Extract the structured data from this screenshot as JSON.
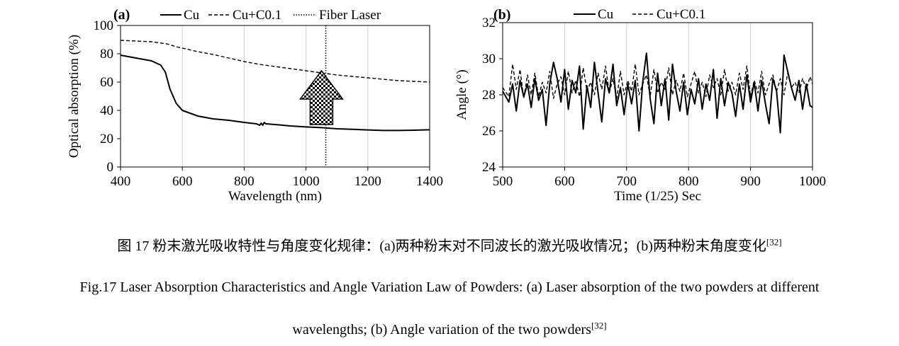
{
  "chart_data": [
    {
      "panel": "(a)",
      "type": "line",
      "xlabel": "Wavelength (nm)",
      "ylabel": "Optical absorption (%)",
      "xlim": [
        400,
        1400
      ],
      "ylim": [
        0,
        100
      ],
      "xticks": [
        400,
        600,
        800,
        1000,
        1200,
        1400
      ],
      "yticks": [
        0,
        20,
        40,
        60,
        80,
        100
      ],
      "grid": "vertical",
      "legend": "top",
      "series": [
        {
          "name": "Cu",
          "style": "solid",
          "x": [
            400,
            450,
            500,
            530,
            545,
            560,
            580,
            600,
            650,
            700,
            750,
            800,
            840,
            850,
            855,
            860,
            865,
            870,
            900,
            950,
            1000,
            1050,
            1100,
            1150,
            1200,
            1250,
            1300,
            1350,
            1400
          ],
          "y": [
            79,
            77,
            75,
            72,
            67,
            55,
            45,
            40,
            36,
            34,
            33,
            31.5,
            30.5,
            29.5,
            31,
            29.5,
            31.5,
            30.5,
            30,
            29,
            28.3,
            27.8,
            27,
            26.6,
            26.2,
            25.8,
            25.8,
            26,
            26.3
          ]
        },
        {
          "name": "Cu+C0.1",
          "style": "dashed",
          "x": [
            400,
            450,
            500,
            550,
            580,
            600,
            650,
            700,
            750,
            800,
            850,
            900,
            950,
            1000,
            1050,
            1100,
            1150,
            1200,
            1250,
            1300,
            1350,
            1400
          ],
          "y": [
            89.5,
            89,
            88.5,
            87,
            85,
            84,
            81.5,
            79.5,
            77,
            74.5,
            72.5,
            71,
            69.5,
            68,
            66.5,
            65,
            64,
            63,
            62,
            61,
            60.5,
            60
          ]
        },
        {
          "name": "Fiber Laser",
          "style": "dotted",
          "x_value": 1064
        }
      ],
      "annotation": "upward arrow indicating absorption increase at 1064 nm"
    },
    {
      "panel": "(b)",
      "type": "line",
      "xlabel": "Time (1/25) Sec",
      "ylabel": "Angle (°)",
      "xlim": [
        500,
        1000
      ],
      "ylim": [
        24,
        32
      ],
      "xticks": [
        500,
        600,
        700,
        800,
        900,
        1000
      ],
      "yticks": [
        24,
        26,
        28,
        30,
        32
      ],
      "grid": "vertical",
      "legend": "top",
      "series": [
        {
          "name": "Cu",
          "style": "solid",
          "x": [
            500,
            510,
            516,
            522,
            528,
            534,
            540,
            546,
            552,
            558,
            564,
            570,
            576,
            582,
            588,
            594,
            600,
            606,
            612,
            618,
            624,
            630,
            636,
            642,
            648,
            654,
            660,
            666,
            672,
            678,
            684,
            690,
            696,
            702,
            708,
            714,
            720,
            726,
            732,
            738,
            744,
            750,
            756,
            762,
            768,
            774,
            780,
            786,
            792,
            798,
            804,
            810,
            816,
            822,
            828,
            834,
            840,
            846,
            852,
            858,
            864,
            870,
            876,
            882,
            888,
            894,
            900,
            906,
            912,
            918,
            924,
            930,
            936,
            942,
            948,
            954,
            960,
            966,
            972,
            978,
            984,
            990,
            996,
            1000
          ],
          "y": [
            28.2,
            27.6,
            28.6,
            27.1,
            28.8,
            27.9,
            28.6,
            27.3,
            28.9,
            27.7,
            28.3,
            26.3,
            28.6,
            29.8,
            28.9,
            27.6,
            29.4,
            27.2,
            28.8,
            28.1,
            29.6,
            26.1,
            28.5,
            27.3,
            29.8,
            28.1,
            26.5,
            28.9,
            28.1,
            29.7,
            27.4,
            28.4,
            26.9,
            28.6,
            27.5,
            28.8,
            26.0,
            28.7,
            30.3,
            27.8,
            26.4,
            29.2,
            27.4,
            28.9,
            26.6,
            29.7,
            28.2,
            27.1,
            28.7,
            26.9,
            28.3,
            27.5,
            28.9,
            27.2,
            28.6,
            27.7,
            29.4,
            26.7,
            28.9,
            27.4,
            28.7,
            28.1,
            26.8,
            28.6,
            27.2,
            29.1,
            27.6,
            28.7,
            27.1,
            28.8,
            27.5,
            26.4,
            28.9,
            28.2,
            25.9,
            30.2,
            29.3,
            28.4,
            27.7,
            28.8,
            27.2,
            28.6,
            27.4,
            27.3
          ]
        },
        {
          "name": "Cu+C0.1",
          "style": "dashed",
          "x": [
            500,
            510,
            516,
            522,
            528,
            534,
            540,
            546,
            552,
            558,
            564,
            570,
            576,
            582,
            588,
            594,
            600,
            606,
            612,
            618,
            624,
            630,
            636,
            642,
            648,
            654,
            660,
            666,
            672,
            678,
            684,
            690,
            696,
            702,
            708,
            714,
            720,
            726,
            732,
            738,
            744,
            750,
            756,
            762,
            768,
            774,
            780,
            786,
            792,
            798,
            804,
            810,
            816,
            822,
            828,
            834,
            840,
            846,
            852,
            858,
            864,
            870,
            876,
            882,
            888,
            894,
            900,
            906,
            912,
            918,
            924,
            930,
            936,
            942,
            948,
            954,
            960,
            966,
            972,
            978,
            984,
            990,
            996,
            1000
          ],
          "y": [
            28.4,
            27.9,
            29.7,
            28.3,
            29.4,
            27.8,
            29.1,
            28.0,
            29.2,
            27.9,
            28.7,
            28.1,
            29.3,
            27.8,
            28.6,
            29.0,
            28.0,
            29.3,
            28.1,
            28.8,
            27.9,
            29.5,
            28.2,
            28.7,
            28.0,
            29.2,
            28.3,
            29.6,
            28.1,
            28.9,
            27.8,
            29.3,
            28.0,
            28.8,
            28.2,
            29.7,
            28.0,
            28.6,
            29.1,
            27.9,
            29.4,
            28.1,
            28.7,
            28.3,
            29.5,
            28.0,
            28.8,
            28.2,
            29.2,
            27.9,
            28.6,
            29.3,
            28.1,
            28.7,
            27.9,
            29.1,
            28.4,
            28.9,
            28.0,
            29.4,
            28.2,
            28.7,
            28.0,
            29.2,
            28.3,
            29.6,
            27.9,
            28.8,
            28.1,
            29.3,
            28.0,
            28.6,
            29.1,
            28.2,
            28.9,
            28.0,
            29.2,
            28.4,
            28.7,
            28.1,
            28.9,
            28.3,
            29.0,
            28.6
          ]
        }
      ]
    }
  ],
  "labels": {
    "panel_a": "(a)",
    "panel_b": "(b)",
    "legend_cu": "Cu",
    "legend_cuc": "Cu+C0.1",
    "legend_fiber": "Fiber Laser"
  },
  "caption": {
    "cn": "图 17 粉末激光吸收特性与角度变化规律：(a)两种粉末对不同波长的激光吸收情况；(b)两种粉末角度变化",
    "cn_ref": "[32]",
    "en_line1": "Fig.17 Laser Absorption Characteristics and Angle Variation Law of Powders: (a) Laser absorption of the two powders at different",
    "en_line2": "wavelengths; (b) Angle variation of the two powders",
    "en_ref": "[32]"
  }
}
